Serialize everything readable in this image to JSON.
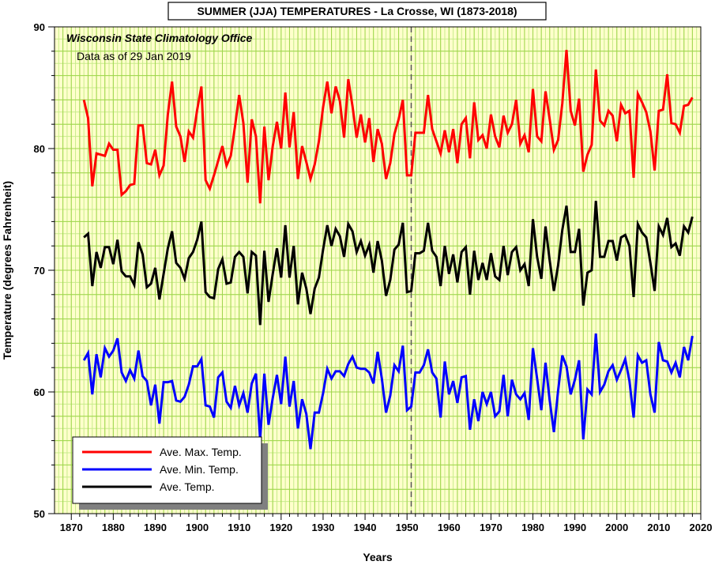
{
  "chart_data": {
    "type": "line",
    "title": "SUMMER (JJA) TEMPERATURES - La Crosse, WI (1873-2018)",
    "xlabel": "Years",
    "ylabel": "Temperature (degrees Fahrenheit)",
    "xlim": [
      1866,
      2020
    ],
    "ylim": [
      50,
      90
    ],
    "xticks": [
      1870,
      1880,
      1890,
      1900,
      1910,
      1920,
      1930,
      1940,
      1950,
      1960,
      1970,
      1980,
      1990,
      2000,
      2010,
      2020
    ],
    "yticks": [
      50,
      60,
      70,
      80,
      90
    ],
    "grid": true,
    "legend_position": "bottom-left",
    "annotations": {
      "source": "Wisconsin State Climatology Office",
      "data_date": "Data as of 29 Jan 2019"
    },
    "reference_line_year": 1951,
    "start_year": 1873,
    "series": [
      {
        "name": "Ave. Max. Temp.",
        "color": "#ff0000",
        "values": [
          84.0,
          82.5,
          76.9,
          79.6,
          79.5,
          79.4,
          80.4,
          79.9,
          79.9,
          76.2,
          76.5,
          77.0,
          77.1,
          81.9,
          81.9,
          78.8,
          78.7,
          79.9,
          77.8,
          78.6,
          82.8,
          85.5,
          81.8,
          81.0,
          78.9,
          81.4,
          80.9,
          83.2,
          85.1,
          77.4,
          76.7,
          77.8,
          79.0,
          80.2,
          78.6,
          79.4,
          81.8,
          84.4,
          82.1,
          77.2,
          82.4,
          81.0,
          75.5,
          81.8,
          77.4,
          80.2,
          82.2,
          80.0,
          84.6,
          80.1,
          83.0,
          77.5,
          80.2,
          78.9,
          77.5,
          78.7,
          80.6,
          83.4,
          85.5,
          82.9,
          85.1,
          83.9,
          80.9,
          85.7,
          83.5,
          80.9,
          82.8,
          80.5,
          82.5,
          78.9,
          81.6,
          80.4,
          77.5,
          78.8,
          81.2,
          82.4,
          84.0,
          77.8,
          77.8,
          81.3,
          81.3,
          81.3,
          84.4,
          81.6,
          80.6,
          79.6,
          81.5,
          79.7,
          81.6,
          78.8,
          82.0,
          82.5,
          79.2,
          83.8,
          80.7,
          81.1,
          80.0,
          82.8,
          81.0,
          80.1,
          82.7,
          81.3,
          82.0,
          84.0,
          80.4,
          81.1,
          79.7,
          84.9,
          81.0,
          80.6,
          84.7,
          82.4,
          79.9,
          80.7,
          83.7,
          88.1,
          83.1,
          81.9,
          84.1,
          78.1,
          79.5,
          80.3,
          86.5,
          82.3,
          81.9,
          83.1,
          82.7,
          80.6,
          83.6,
          82.9,
          83.1,
          77.6,
          84.5,
          83.8,
          83.0,
          81.4,
          78.2,
          83.1,
          83.2,
          86.1,
          82.1,
          82.0,
          81.3,
          83.5,
          83.6,
          84.2
        ]
      },
      {
        "name": "Ave. Min. Temp.",
        "color": "#0000ff",
        "values": [
          62.6,
          63.2,
          59.8,
          63.1,
          61.2,
          63.6,
          62.9,
          63.4,
          64.4,
          61.6,
          60.9,
          61.8,
          61.1,
          63.4,
          61.3,
          60.9,
          58.9,
          60.6,
          57.4,
          60.8,
          60.8,
          60.9,
          59.3,
          59.2,
          59.6,
          60.6,
          62.1,
          62.1,
          62.7,
          58.9,
          58.8,
          57.9,
          61.2,
          61.6,
          59.2,
          58.7,
          60.5,
          58.9,
          59.9,
          58.3,
          60.7,
          61.5,
          56.1,
          61.5,
          57.3,
          59.5,
          61.4,
          59.0,
          62.9,
          58.8,
          60.9,
          57.0,
          59.4,
          58.2,
          55.3,
          58.3,
          58.3,
          59.9,
          61.9,
          61.1,
          61.7,
          61.7,
          61.3,
          62.3,
          62.9,
          62.0,
          61.9,
          61.9,
          61.6,
          60.7,
          63.3,
          61.1,
          58.3,
          59.7,
          62.2,
          61.7,
          63.8,
          58.5,
          58.8,
          61.6,
          61.6,
          62.2,
          63.5,
          61.6,
          61.1,
          57.9,
          62.5,
          59.8,
          60.9,
          59.1,
          61.2,
          61.3,
          56.9,
          59.4,
          57.6,
          60.0,
          59.0,
          60.0,
          58.0,
          58.4,
          61.4,
          58.0,
          61.0,
          59.8,
          59.4,
          59.9,
          57.7,
          63.6,
          61.1,
          58.5,
          62.4,
          59.3,
          56.7,
          60.1,
          63.0,
          62.1,
          59.8,
          61.0,
          62.6,
          56.1,
          60.2,
          59.8,
          64.8,
          60.0,
          60.6,
          61.7,
          62.2,
          61.0,
          61.8,
          62.7,
          60.9,
          57.9,
          63.0,
          62.4,
          62.6,
          59.8,
          58.3,
          64.1,
          62.6,
          62.5,
          61.6,
          62.4,
          61.2,
          63.7,
          62.6,
          64.6
        ]
      },
      {
        "name": "Ave. Temp.",
        "color": "#000000",
        "values": [
          72.7,
          73.0,
          68.7,
          71.5,
          70.2,
          71.9,
          71.9,
          70.5,
          72.5,
          69.9,
          69.5,
          69.5,
          68.8,
          72.3,
          71.3,
          68.6,
          68.9,
          70.2,
          67.6,
          69.7,
          71.8,
          73.2,
          70.6,
          70.2,
          69.3,
          71.0,
          71.5,
          72.5,
          74.0,
          68.2,
          67.8,
          67.7,
          70.1,
          70.9,
          68.9,
          69.0,
          71.1,
          71.5,
          71.1,
          68.1,
          71.5,
          71.2,
          65.5,
          71.6,
          67.4,
          69.7,
          71.8,
          69.4,
          73.7,
          69.4,
          72.0,
          67.2,
          69.8,
          68.5,
          66.4,
          68.5,
          69.4,
          71.7,
          73.7,
          72.0,
          73.4,
          72.8,
          71.1,
          73.8,
          73.2,
          71.5,
          72.4,
          71.2,
          72.1,
          69.8,
          72.4,
          70.8,
          67.9,
          69.2,
          71.7,
          72.1,
          73.9,
          68.2,
          68.3,
          71.4,
          71.4,
          71.6,
          73.9,
          71.6,
          71.1,
          68.7,
          72.0,
          69.7,
          71.3,
          69.0,
          71.5,
          71.9,
          68.0,
          71.6,
          69.2,
          70.6,
          69.2,
          71.4,
          69.5,
          69.2,
          72.0,
          69.6,
          71.5,
          71.9,
          70.0,
          70.5,
          68.7,
          74.2,
          71.1,
          69.3,
          73.6,
          70.8,
          68.3,
          70.4,
          73.3,
          75.3,
          71.5,
          71.5,
          73.4,
          67.1,
          69.8,
          70.0,
          75.7,
          71.1,
          71.1,
          72.4,
          72.4,
          70.8,
          72.7,
          72.9,
          72.0,
          67.8,
          73.8,
          73.1,
          72.7,
          70.6,
          68.3,
          73.6,
          72.9,
          74.3,
          71.9,
          72.2,
          71.2,
          73.6,
          73.1,
          74.4
        ]
      }
    ]
  }
}
